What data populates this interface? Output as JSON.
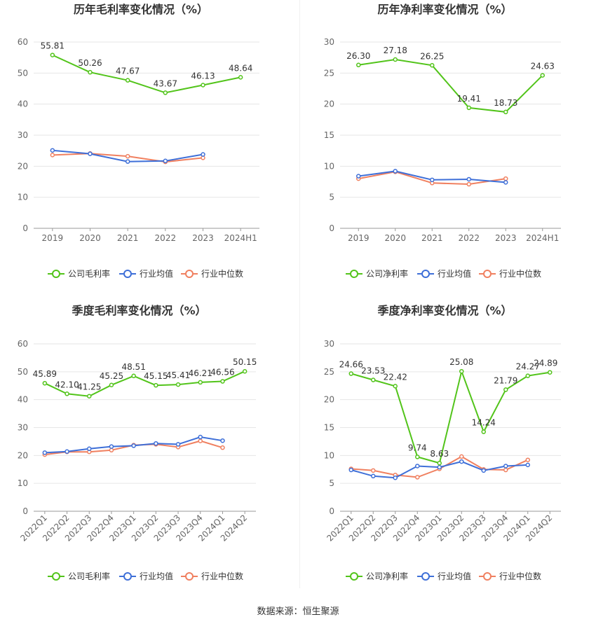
{
  "source": "数据来源：恒生聚源",
  "colors": {
    "company": "#52c41a",
    "avg": "#3e6fd8",
    "median": "#f08060"
  },
  "chart_data": [
    {
      "type": "line",
      "title": "历年毛利率变化情况（%）",
      "categories": [
        "2019",
        "2020",
        "2021",
        "2022",
        "2023",
        "2024H1"
      ],
      "ylim": [
        0,
        60
      ],
      "yticks": [
        0,
        10,
        20,
        30,
        40,
        50,
        60
      ],
      "grid": true,
      "legend_position": "bottom",
      "series": [
        {
          "name": "公司毛利率",
          "key": "company",
          "values": [
            55.81,
            50.26,
            47.67,
            43.67,
            46.13,
            48.64
          ],
          "labels": [
            "55.81",
            "50.26",
            "47.67",
            "43.67",
            "46.13",
            "48.64"
          ]
        },
        {
          "name": "行业均值",
          "key": "avg",
          "values": [
            25.1,
            24.0,
            21.5,
            21.7,
            23.8,
            null
          ]
        },
        {
          "name": "行业中位数",
          "key": "median",
          "values": [
            23.6,
            24.1,
            23.2,
            21.4,
            22.7,
            null
          ]
        }
      ]
    },
    {
      "type": "line",
      "title": "历年净利率变化情况（%）",
      "categories": [
        "2019",
        "2020",
        "2021",
        "2022",
        "2023",
        "2024H1"
      ],
      "ylim": [
        0,
        30
      ],
      "yticks": [
        0,
        5,
        10,
        15,
        20,
        25,
        30
      ],
      "grid": true,
      "legend_position": "bottom",
      "series": [
        {
          "name": "公司净利率",
          "key": "company",
          "values": [
            26.3,
            27.18,
            26.25,
            19.41,
            18.73,
            24.63
          ],
          "labels": [
            "26.30",
            "27.18",
            "26.25",
            "19.41",
            "18.73",
            "24.63"
          ]
        },
        {
          "name": "行业均值",
          "key": "avg",
          "values": [
            8.4,
            9.2,
            7.8,
            7.9,
            7.4,
            null
          ]
        },
        {
          "name": "行业中位数",
          "key": "median",
          "values": [
            8.0,
            9.1,
            7.3,
            7.1,
            8.0,
            null
          ]
        }
      ]
    },
    {
      "type": "line",
      "title": "季度毛利率变化情况（%）",
      "categories": [
        "2022Q1",
        "2022Q2",
        "2022Q3",
        "2022Q4",
        "2023Q1",
        "2023Q2",
        "2023Q3",
        "2023Q4",
        "2024Q1",
        "2024Q2"
      ],
      "ylim": [
        0,
        60
      ],
      "yticks": [
        0,
        10,
        20,
        30,
        40,
        50,
        60
      ],
      "grid": true,
      "legend_position": "bottom",
      "series": [
        {
          "name": "公司毛利率",
          "key": "company",
          "values": [
            45.89,
            42.1,
            41.25,
            45.25,
            48.51,
            45.15,
            45.41,
            46.21,
            46.56,
            50.15
          ],
          "labels": [
            "45.89",
            "42.10",
            "41.25",
            "45.25",
            "48.51",
            "45.15",
            "45.41",
            "46.21",
            "46.56",
            "50.15"
          ]
        },
        {
          "name": "行业均值",
          "key": "avg",
          "values": [
            21.0,
            21.4,
            22.4,
            23.2,
            23.5,
            24.3,
            24.0,
            26.6,
            25.3,
            null
          ]
        },
        {
          "name": "行业中位数",
          "key": "median",
          "values": [
            20.3,
            21.3,
            21.3,
            21.9,
            23.7,
            24.0,
            23.0,
            25.2,
            22.8,
            null
          ]
        }
      ]
    },
    {
      "type": "line",
      "title": "季度净利率变化情况（%）",
      "categories": [
        "2022Q1",
        "2022Q2",
        "2022Q3",
        "2022Q4",
        "2023Q1",
        "2023Q2",
        "2023Q3",
        "2023Q4",
        "2024Q1",
        "2024Q2"
      ],
      "ylim": [
        0,
        30
      ],
      "yticks": [
        0,
        5,
        10,
        15,
        20,
        25,
        30
      ],
      "grid": true,
      "legend_position": "bottom",
      "series": [
        {
          "name": "公司净利率",
          "key": "company",
          "values": [
            24.66,
            23.53,
            22.42,
            9.74,
            8.63,
            25.08,
            14.24,
            21.79,
            24.27,
            24.89
          ],
          "labels": [
            "24.66",
            "23.53",
            "22.42",
            "9.74",
            "8.63",
            "25.08",
            "14.24",
            "21.79",
            "24.27",
            "24.89"
          ]
        },
        {
          "name": "行业均值",
          "key": "avg",
          "values": [
            7.4,
            6.3,
            6.0,
            8.1,
            7.9,
            8.9,
            7.3,
            8.1,
            8.3,
            null
          ]
        },
        {
          "name": "行业中位数",
          "key": "median",
          "values": [
            7.6,
            7.3,
            6.5,
            6.1,
            7.6,
            9.8,
            7.5,
            7.4,
            9.2,
            null
          ]
        }
      ]
    }
  ]
}
